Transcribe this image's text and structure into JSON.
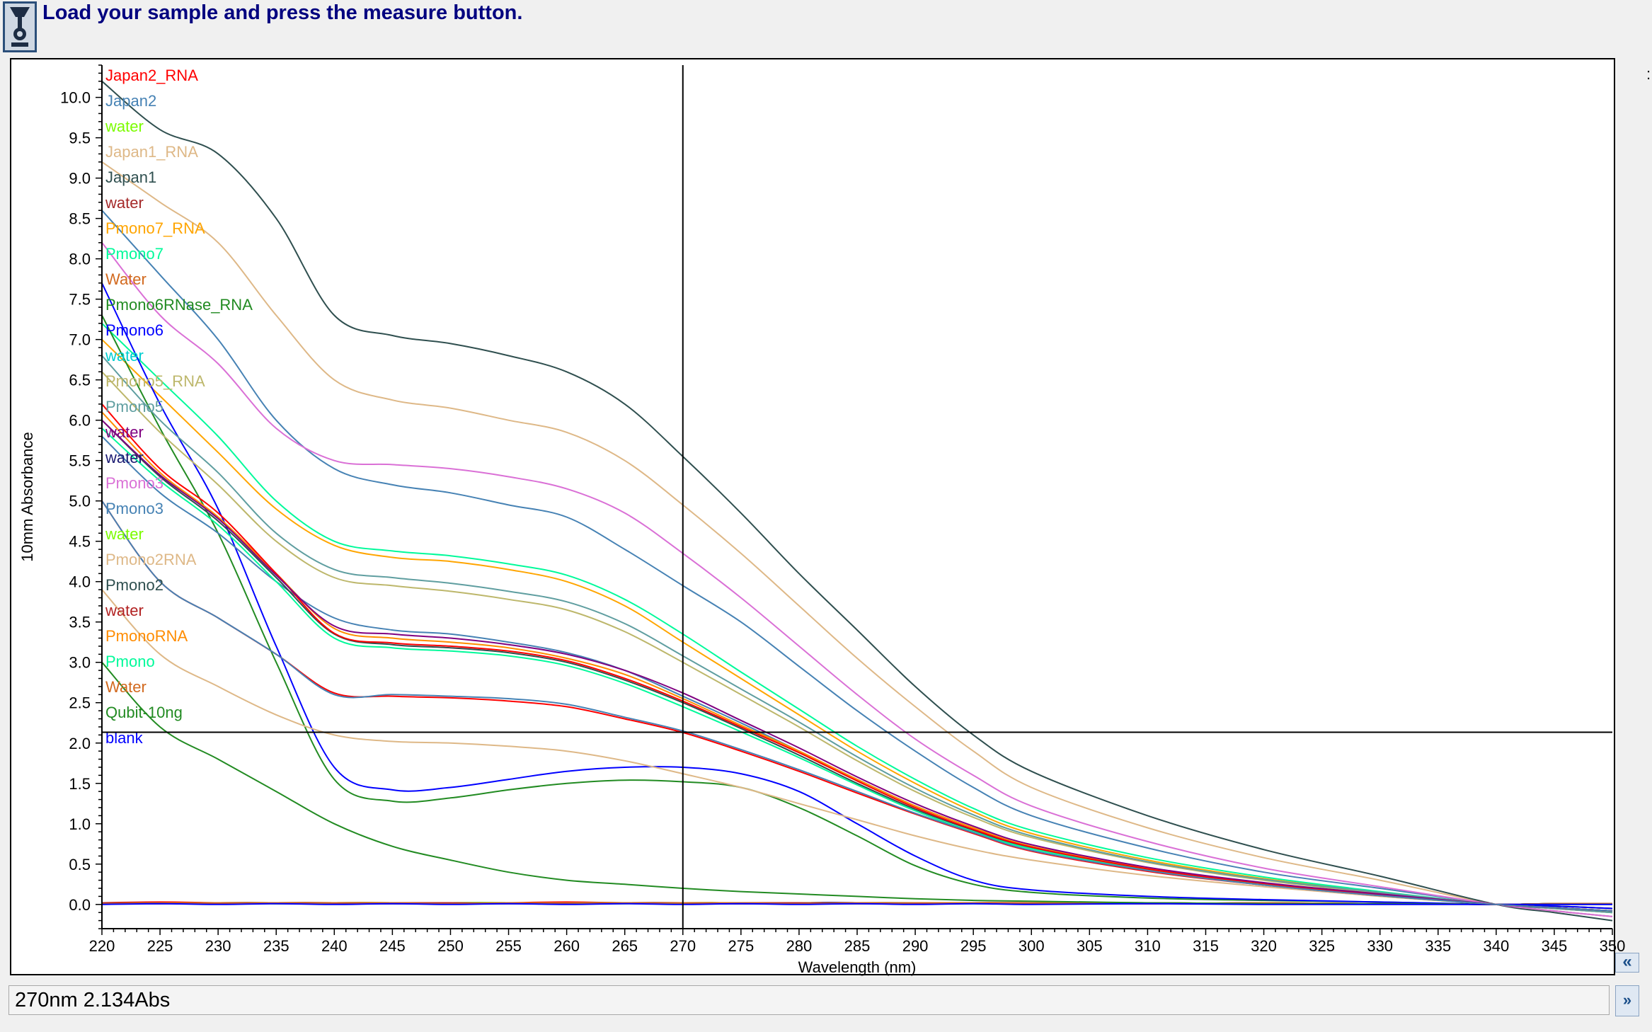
{
  "header": {
    "instruction": "Load your sample and press the measure button.",
    "app_icon": "spectrophotometer-icon"
  },
  "status": {
    "readout": "270nm 2.134Abs"
  },
  "buttons": {
    "collapse_icon": "double-chevron-left-icon",
    "expand_icon": "double-chevron-down-icon",
    "collapse_glyph": "«",
    "expand_glyph": "»"
  },
  "edge_mark": ":",
  "chart_data": {
    "type": "line",
    "xlabel": "Wavelength (nm)",
    "ylabel": "10mm Absorbance",
    "xlim": [
      220,
      350
    ],
    "ylim": [
      -0.3,
      10.4
    ],
    "x_ticks": [
      220,
      225,
      230,
      235,
      240,
      245,
      250,
      255,
      260,
      265,
      270,
      275,
      280,
      285,
      290,
      295,
      300,
      305,
      310,
      315,
      320,
      325,
      330,
      335,
      340,
      345,
      350
    ],
    "y_ticks": [
      0.0,
      0.5,
      1.0,
      1.5,
      2.0,
      2.5,
      3.0,
      3.5,
      4.0,
      4.5,
      5.0,
      5.5,
      6.0,
      6.5,
      7.0,
      7.5,
      8.0,
      8.5,
      9.0,
      9.5,
      10.0
    ],
    "cursor": {
      "x": 270,
      "y": 2.134
    },
    "legend_placement": "top-left inside",
    "x": [
      220,
      225,
      230,
      235,
      240,
      245,
      250,
      255,
      260,
      265,
      270,
      275,
      280,
      285,
      290,
      295,
      300,
      310,
      320,
      330,
      340,
      345,
      350
    ],
    "series": [
      {
        "name": "Japan2_RNA",
        "color": "#ff0000",
        "values": [
          0.02,
          0.03,
          0.02,
          0.01,
          0.02,
          0.02,
          0.01,
          0.02,
          0.03,
          0.02,
          0.02,
          0.01,
          0.02,
          0.02,
          0.01,
          0.02,
          0.02,
          0.01,
          0.02,
          0.01,
          0.0,
          -0.02,
          -0.05
        ]
      },
      {
        "name": "Japan2",
        "color": "#4682b4",
        "values": [
          8.6,
          7.8,
          7.0,
          6.0,
          5.4,
          5.2,
          5.1,
          4.95,
          4.8,
          4.4,
          3.95,
          3.5,
          2.95,
          2.4,
          1.9,
          1.45,
          1.1,
          0.7,
          0.4,
          0.2,
          0.0,
          -0.08,
          -0.15
        ]
      },
      {
        "name": "water",
        "color": "#7cfc00",
        "values": [
          0.01,
          0.02,
          0.02,
          0.02,
          0.01,
          0.02,
          0.02,
          0.02,
          0.02,
          0.02,
          0.02,
          0.02,
          0.02,
          0.01,
          0.02,
          0.02,
          0.02,
          0.02,
          0.01,
          0.01,
          0.0,
          0.01,
          0.01
        ]
      },
      {
        "name": "Japan1_RNA",
        "color": "#deb887",
        "values": [
          9.2,
          8.7,
          8.2,
          7.3,
          6.5,
          6.25,
          6.15,
          6.0,
          5.85,
          5.5,
          4.95,
          4.35,
          3.7,
          3.05,
          2.45,
          1.9,
          1.45,
          0.95,
          0.58,
          0.3,
          0.0,
          -0.08,
          -0.15
        ]
      },
      {
        "name": "Japan1",
        "color": "#2f4f4f",
        "values": [
          10.2,
          9.6,
          9.3,
          8.5,
          7.3,
          7.05,
          6.95,
          6.8,
          6.6,
          6.2,
          5.55,
          4.85,
          4.1,
          3.4,
          2.7,
          2.1,
          1.65,
          1.1,
          0.68,
          0.35,
          0.0,
          -0.1,
          -0.2
        ]
      },
      {
        "name": "water",
        "color": "#a52a2a",
        "values": [
          0.02,
          0.02,
          0.01,
          0.02,
          0.02,
          0.02,
          0.01,
          0.02,
          0.02,
          0.02,
          0.02,
          0.01,
          0.02,
          0.02,
          0.02,
          0.02,
          0.01,
          0.02,
          0.01,
          0.01,
          0.0,
          0.01,
          0.01
        ]
      },
      {
        "name": "Pmono7_RNA",
        "color": "#ffa500",
        "values": [
          7.0,
          6.3,
          5.6,
          4.9,
          4.45,
          4.3,
          4.25,
          4.15,
          4.0,
          3.7,
          3.25,
          2.8,
          2.35,
          1.9,
          1.5,
          1.15,
          0.88,
          0.55,
          0.32,
          0.15,
          0.0,
          -0.05,
          -0.1
        ]
      },
      {
        "name": "Pmono7",
        "color": "#00fa9a",
        "values": [
          7.2,
          6.5,
          5.8,
          5.0,
          4.5,
          4.38,
          4.32,
          4.22,
          4.08,
          3.78,
          3.35,
          2.88,
          2.42,
          1.96,
          1.55,
          1.19,
          0.92,
          0.58,
          0.34,
          0.16,
          0.0,
          -0.05,
          -0.1
        ]
      },
      {
        "name": "Water",
        "color": "#d2691e",
        "values": [
          0.02,
          0.01,
          0.02,
          0.02,
          0.02,
          0.01,
          0.02,
          0.02,
          0.02,
          0.02,
          0.01,
          0.02,
          0.02,
          0.02,
          0.01,
          0.02,
          0.02,
          0.02,
          0.01,
          0.01,
          0.0,
          0.01,
          0.01
        ]
      },
      {
        "name": "Pmono6RNase_RNA",
        "color": "#228b22",
        "values": [
          7.3,
          5.9,
          4.6,
          3.0,
          1.55,
          1.28,
          1.32,
          1.42,
          1.5,
          1.54,
          1.52,
          1.45,
          1.2,
          0.85,
          0.48,
          0.25,
          0.15,
          0.08,
          0.05,
          0.03,
          0.0,
          -0.02,
          -0.05
        ]
      },
      {
        "name": "Pmono6",
        "color": "#0000ff",
        "values": [
          7.7,
          6.2,
          4.9,
          3.2,
          1.7,
          1.42,
          1.45,
          1.55,
          1.65,
          1.7,
          1.7,
          1.62,
          1.4,
          1.0,
          0.6,
          0.3,
          0.18,
          0.1,
          0.06,
          0.03,
          0.0,
          -0.02,
          -0.05
        ]
      },
      {
        "name": "water",
        "color": "#00ced1",
        "values": [
          0.01,
          0.02,
          0.02,
          0.01,
          0.02,
          0.02,
          0.02,
          0.01,
          0.02,
          0.02,
          0.02,
          0.02,
          0.01,
          0.02,
          0.02,
          0.01,
          0.02,
          0.02,
          0.01,
          0.01,
          0.0,
          0.01,
          0.01
        ]
      },
      {
        "name": "Pmono5_RNA",
        "color": "#bdb76b",
        "values": [
          6.6,
          5.85,
          5.2,
          4.5,
          4.05,
          3.95,
          3.88,
          3.78,
          3.65,
          3.38,
          3.0,
          2.6,
          2.2,
          1.78,
          1.4,
          1.08,
          0.83,
          0.52,
          0.3,
          0.14,
          0.0,
          -0.05,
          -0.1
        ]
      },
      {
        "name": "Pmono5",
        "color": "#5f9ea0",
        "values": [
          6.8,
          6.0,
          5.35,
          4.6,
          4.15,
          4.05,
          3.98,
          3.88,
          3.75,
          3.48,
          3.08,
          2.67,
          2.26,
          1.83,
          1.44,
          1.11,
          0.85,
          0.53,
          0.31,
          0.15,
          0.0,
          -0.05,
          -0.1
        ]
      },
      {
        "name": "water",
        "color": "#800080",
        "values": [
          0.02,
          0.02,
          0.02,
          0.02,
          0.01,
          0.02,
          0.02,
          0.02,
          0.01,
          0.02,
          0.02,
          0.02,
          0.02,
          0.02,
          0.01,
          0.02,
          0.02,
          0.01,
          0.02,
          0.01,
          0.0,
          0.01,
          0.01
        ]
      },
      {
        "name": "water",
        "color": "#191970",
        "values": [
          0.01,
          0.01,
          0.02,
          0.02,
          0.02,
          0.01,
          0.02,
          0.02,
          0.02,
          0.02,
          0.02,
          0.01,
          0.02,
          0.02,
          0.02,
          0.02,
          0.01,
          0.02,
          0.01,
          0.01,
          0.0,
          0.01,
          0.01
        ]
      },
      {
        "name": "Pmono3",
        "color": "#da70d6",
        "values": [
          8.2,
          7.3,
          6.7,
          5.9,
          5.5,
          5.45,
          5.4,
          5.3,
          5.15,
          4.85,
          4.35,
          3.8,
          3.2,
          2.6,
          2.05,
          1.6,
          1.22,
          0.78,
          0.45,
          0.22,
          0.0,
          -0.08,
          -0.15
        ]
      },
      {
        "name": "Pmono3",
        "color": "#4682b4",
        "values": [
          5.8,
          5.1,
          4.6,
          4.0,
          3.55,
          3.4,
          3.35,
          3.25,
          3.12,
          2.9,
          2.58,
          2.25,
          1.9,
          1.55,
          1.22,
          0.95,
          0.72,
          0.45,
          0.26,
          0.12,
          0.0,
          -0.04,
          -0.08
        ]
      },
      {
        "name": "water",
        "color": "#7cfc00",
        "values": [
          0.02,
          0.02,
          0.02,
          0.01,
          0.02,
          0.02,
          0.02,
          0.02,
          0.02,
          0.01,
          0.02,
          0.02,
          0.02,
          0.01,
          0.02,
          0.02,
          0.02,
          0.02,
          0.01,
          0.01,
          0.0,
          0.01,
          0.01
        ]
      },
      {
        "name": "Pmono2RNA",
        "color": "#deb887",
        "values": [
          3.9,
          3.1,
          2.7,
          2.35,
          2.1,
          2.02,
          2.0,
          1.96,
          1.9,
          1.78,
          1.62,
          1.45,
          1.25,
          1.05,
          0.85,
          0.68,
          0.55,
          0.36,
          0.22,
          0.1,
          0.0,
          -0.04,
          -0.08
        ]
      },
      {
        "name": "Pmono2",
        "color": "#2f4f4f",
        "values": [
          6.0,
          5.3,
          4.75,
          4.05,
          3.35,
          3.22,
          3.18,
          3.12,
          3.0,
          2.78,
          2.5,
          2.18,
          1.85,
          1.5,
          1.18,
          0.92,
          0.7,
          0.44,
          0.25,
          0.12,
          0.0,
          -0.04,
          -0.08
        ]
      },
      {
        "name": "water",
        "color": "#b22222",
        "values": [
          0.02,
          0.02,
          0.01,
          0.02,
          0.02,
          0.02,
          0.02,
          0.01,
          0.02,
          0.02,
          0.02,
          0.02,
          0.02,
          0.01,
          0.02,
          0.02,
          0.01,
          0.02,
          0.01,
          0.01,
          0.0,
          0.01,
          0.01
        ]
      },
      {
        "name": "PmonoRNA",
        "color": "#ff8c00",
        "values": [
          6.1,
          5.35,
          4.8,
          4.1,
          3.42,
          3.3,
          3.25,
          3.18,
          3.05,
          2.85,
          2.55,
          2.22,
          1.9,
          1.55,
          1.22,
          0.95,
          0.72,
          0.45,
          0.26,
          0.12,
          0.0,
          -0.04,
          -0.08
        ]
      },
      {
        "name": "Pmono",
        "color": "#00fa9a",
        "values": [
          5.9,
          5.25,
          4.7,
          4.0,
          3.3,
          3.18,
          3.14,
          3.08,
          2.96,
          2.74,
          2.45,
          2.14,
          1.82,
          1.48,
          1.16,
          0.9,
          0.69,
          0.43,
          0.25,
          0.11,
          0.0,
          -0.04,
          -0.08
        ]
      },
      {
        "name": "Water",
        "color": "#d2691e",
        "values": [
          0.01,
          0.02,
          0.02,
          0.02,
          0.02,
          0.02,
          0.01,
          0.02,
          0.02,
          0.02,
          0.02,
          0.02,
          0.01,
          0.02,
          0.02,
          0.02,
          0.02,
          0.01,
          0.02,
          0.01,
          0.0,
          0.01,
          0.01
        ]
      },
      {
        "name": "Qubit-10ng",
        "color": "#228b22",
        "values": [
          3.0,
          2.2,
          1.8,
          1.4,
          1.0,
          0.72,
          0.55,
          0.4,
          0.3,
          0.25,
          0.2,
          0.16,
          0.13,
          0.1,
          0.07,
          0.05,
          0.04,
          0.02,
          0.01,
          0.01,
          0.0,
          0.0,
          0.0
        ]
      },
      {
        "name": "blank",
        "color": "#0000ff",
        "values": [
          0.0,
          0.01,
          0.0,
          0.01,
          0.0,
          0.01,
          0.0,
          0.01,
          0.0,
          0.01,
          0.0,
          0.01,
          0.0,
          0.01,
          0.0,
          0.01,
          0.0,
          0.01,
          0.0,
          0.0,
          0.0,
          0.0,
          0.0
        ]
      },
      {
        "name": "",
        "color": "#ff0000",
        "values": [
          6.2,
          5.4,
          4.85,
          4.1,
          3.36,
          3.24,
          3.2,
          3.14,
          3.02,
          2.8,
          2.52,
          2.2,
          1.88,
          1.53,
          1.2,
          0.93,
          0.71,
          0.44,
          0.26,
          0.12,
          0.0,
          -0.04,
          -0.08
        ]
      },
      {
        "name": "",
        "color": "#800080",
        "values": [
          6.0,
          5.32,
          4.78,
          4.08,
          3.45,
          3.35,
          3.3,
          3.22,
          3.1,
          2.9,
          2.62,
          2.28,
          1.94,
          1.58,
          1.25,
          0.97,
          0.74,
          0.46,
          0.27,
          0.13,
          0.0,
          -0.04,
          -0.08
        ]
      },
      {
        "name": "",
        "color": "#ff0000",
        "values": [
          5.0,
          4.0,
          3.55,
          3.1,
          2.62,
          2.58,
          2.56,
          2.52,
          2.45,
          2.3,
          2.13,
          1.9,
          1.65,
          1.38,
          1.12,
          0.88,
          0.66,
          0.41,
          0.24,
          0.11,
          0.0,
          -0.04,
          -0.08
        ]
      },
      {
        "name": "",
        "color": "#4682b4",
        "values": [
          5.0,
          4.0,
          3.55,
          3.1,
          2.6,
          2.6,
          2.58,
          2.55,
          2.48,
          2.32,
          2.15,
          1.92,
          1.67,
          1.4,
          1.13,
          0.89,
          0.67,
          0.42,
          0.24,
          0.11,
          0.0,
          -0.04,
          -0.08
        ]
      }
    ]
  }
}
